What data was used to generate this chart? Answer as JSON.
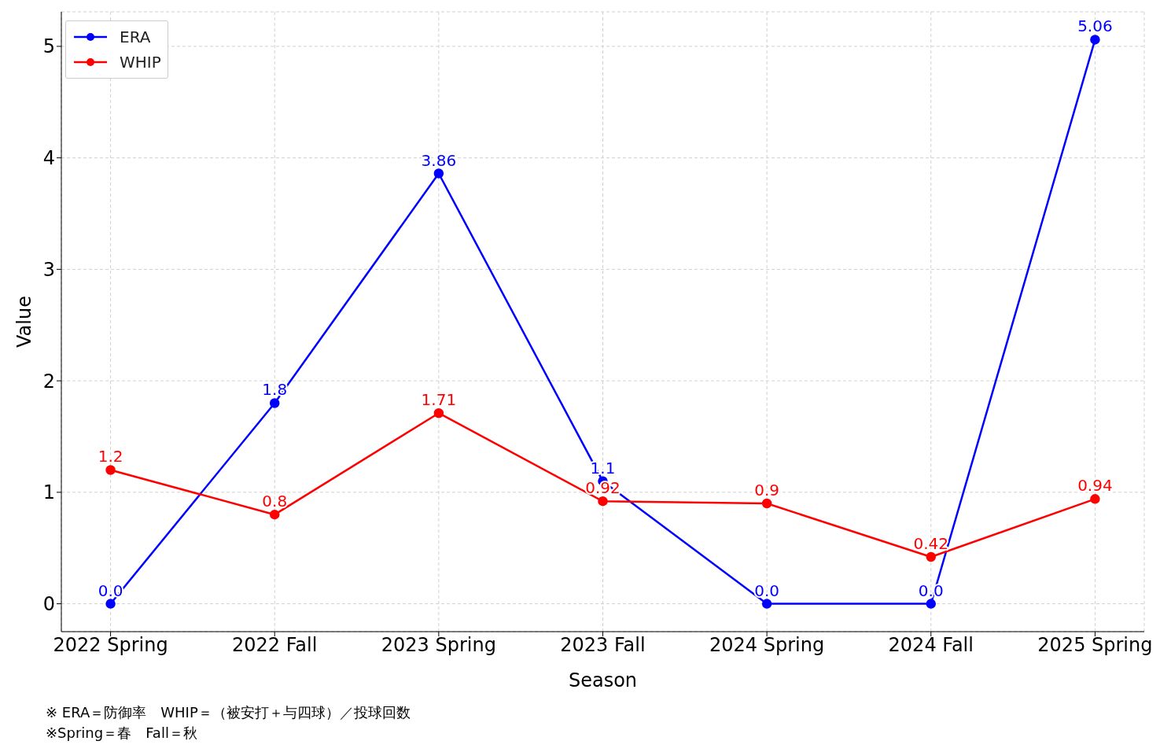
{
  "chart_data": {
    "type": "line",
    "xlabel": "Season",
    "ylabel": "Value",
    "categories": [
      "2022 Spring",
      "2022 Fall",
      "2023 Spring",
      "2023 Fall",
      "2024 Spring",
      "2024 Fall",
      "2025 Spring"
    ],
    "series": [
      {
        "name": "ERA",
        "color": "#0000ff",
        "values": [
          0,
          1.8,
          3.86,
          1.1,
          0,
          0,
          5.06
        ],
        "value_labels": [
          "0.0",
          "1.8",
          "3.86",
          "1.1",
          "0.0",
          "0.0",
          "5.06"
        ]
      },
      {
        "name": "WHIP",
        "color": "#ff0000",
        "values": [
          1.2,
          0.8,
          1.71,
          0.92,
          0.9,
          0.42,
          0.94
        ],
        "value_labels": [
          "1.2",
          "0.8",
          "1.71",
          "0.92",
          "0.9",
          "0.42",
          "0.94"
        ]
      }
    ],
    "ylim": [
      -0.25,
      5.31
    ],
    "yticks": [
      0,
      1,
      2,
      3,
      4,
      5
    ],
    "grid": true,
    "legend": "top left",
    "marker": "circle",
    "line_style": "solid",
    "annotations": [
      "※ ERA＝防御率　WHIP＝（被安打＋与四球）／投球回数",
      "※Spring＝春　Fall＝秋"
    ]
  }
}
